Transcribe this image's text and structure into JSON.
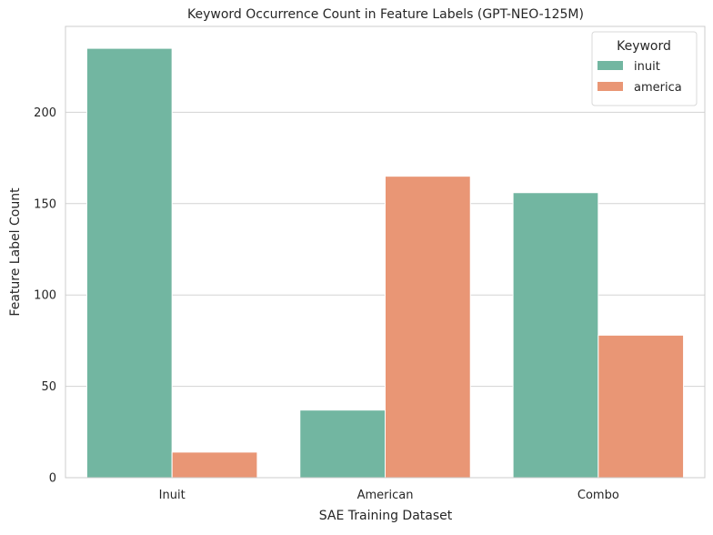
{
  "chart_data": {
    "type": "bar",
    "title": "Keyword Occurrence Count in Feature Labels (GPT-NEO-125M)",
    "xlabel": "SAE Training Dataset",
    "ylabel": "Feature Label Count",
    "categories": [
      "Inuit",
      "American",
      "Combo"
    ],
    "series": [
      {
        "name": "inuit",
        "color": "#72b6a1",
        "values": [
          235,
          37,
          156
        ]
      },
      {
        "name": "america",
        "color": "#e99675",
        "values": [
          14,
          165,
          78
        ]
      }
    ],
    "ylim": [
      0,
      247
    ],
    "yticks": [
      0,
      50,
      100,
      150,
      200
    ],
    "grid": "horizontal",
    "legend": {
      "title": "Keyword",
      "placement": "top-right"
    }
  }
}
